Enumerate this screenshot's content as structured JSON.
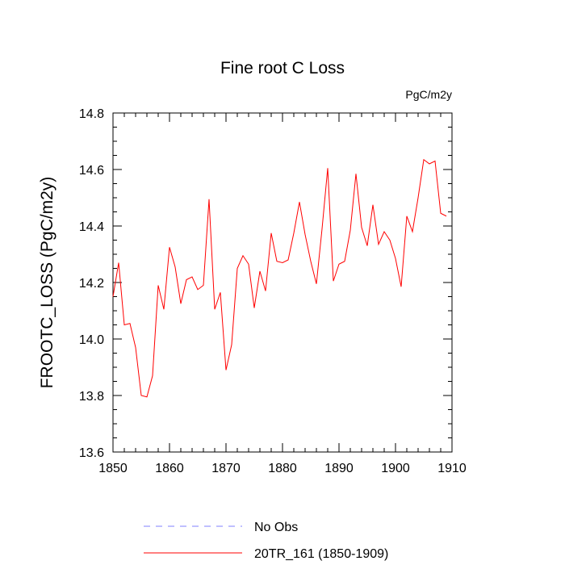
{
  "chart_data": {
    "type": "line",
    "title": "Fine root C Loss",
    "units": "PgC/m2y",
    "xlabel": "",
    "ylabel": "FROOTC_LOSS  (PgC/m2y)",
    "xlim": [
      1850,
      1910
    ],
    "ylim": [
      13.6,
      14.8
    ],
    "xticks": [
      1850,
      1860,
      1870,
      1880,
      1890,
      1900,
      1910
    ],
    "yticks": [
      13.6,
      13.8,
      14.0,
      14.2,
      14.4,
      14.6,
      14.8
    ],
    "ytick_labels": [
      "13.6",
      "13.8",
      "14.0",
      "14.2",
      "14.4",
      "14.6",
      "14.8"
    ],
    "grid": false,
    "legend_position": "bottom",
    "series": [
      {
        "name": "No Obs",
        "color": "#8080ff",
        "dash": true,
        "x": [],
        "values": []
      },
      {
        "name": "20TR_161 (1850-1909)",
        "color": "#ff0000",
        "dash": false,
        "x": [
          1850,
          1851,
          1852,
          1853,
          1854,
          1855,
          1856,
          1857,
          1858,
          1859,
          1860,
          1861,
          1862,
          1863,
          1864,
          1865,
          1866,
          1867,
          1868,
          1869,
          1870,
          1871,
          1872,
          1873,
          1874,
          1875,
          1876,
          1877,
          1878,
          1879,
          1880,
          1881,
          1882,
          1883,
          1884,
          1885,
          1886,
          1887,
          1888,
          1889,
          1890,
          1891,
          1892,
          1893,
          1894,
          1895,
          1896,
          1897,
          1898,
          1899,
          1900,
          1901,
          1902,
          1903,
          1904,
          1905,
          1906,
          1907,
          1908,
          1909
        ],
        "values": [
          14.15,
          14.27,
          14.05,
          14.055,
          13.97,
          13.8,
          13.795,
          13.87,
          14.19,
          14.105,
          14.325,
          14.255,
          14.125,
          14.21,
          14.22,
          14.175,
          14.19,
          14.495,
          14.105,
          14.165,
          13.89,
          13.98,
          14.25,
          14.295,
          14.265,
          14.11,
          14.24,
          14.17,
          14.375,
          14.275,
          14.27,
          14.28,
          14.375,
          14.485,
          14.37,
          14.275,
          14.195,
          14.39,
          14.605,
          14.205,
          14.265,
          14.275,
          14.385,
          14.585,
          14.395,
          14.33,
          14.475,
          14.335,
          14.38,
          14.35,
          14.285,
          14.185,
          14.435,
          14.38,
          14.5,
          14.635,
          14.62,
          14.63,
          14.445,
          14.435
        ]
      }
    ]
  }
}
